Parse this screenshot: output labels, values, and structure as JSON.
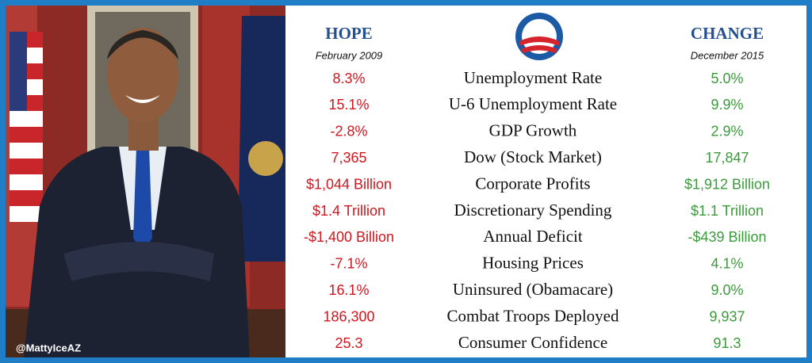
{
  "header": {
    "left_title": "HOPE",
    "left_subtitle": "February 2009",
    "right_title": "CHANGE",
    "right_subtitle": "December 2015"
  },
  "table": {
    "rows": [
      [
        "8.3%",
        "Unemployment Rate",
        "5.0%"
      ],
      [
        "15.1%",
        "U-6 Unemployment Rate",
        "9.9%"
      ],
      [
        "-2.8%",
        "GDP Growth",
        "2.9%"
      ],
      [
        "7,365",
        "Dow (Stock Market)",
        "17,847"
      ],
      [
        "$1,044 Billion",
        "Corporate Profits",
        "$1,912 Billion"
      ],
      [
        "$1.4 Trillion",
        "Discretionary Spending",
        "$1.1 Trillion"
      ],
      [
        "-$1,400 Billion",
        "Annual Deficit",
        "-$439 Billion"
      ],
      [
        "-7.1%",
        "Housing Prices",
        "4.1%"
      ],
      [
        "16.1%",
        "Uninsured (Obamacare)",
        "9.0%"
      ],
      [
        "186,300",
        "Combat Troops Deployed",
        "9,937"
      ],
      [
        "25.3",
        "Consumer Confidence",
        "91.3"
      ]
    ]
  },
  "watermark": "@MattyIceAZ"
}
